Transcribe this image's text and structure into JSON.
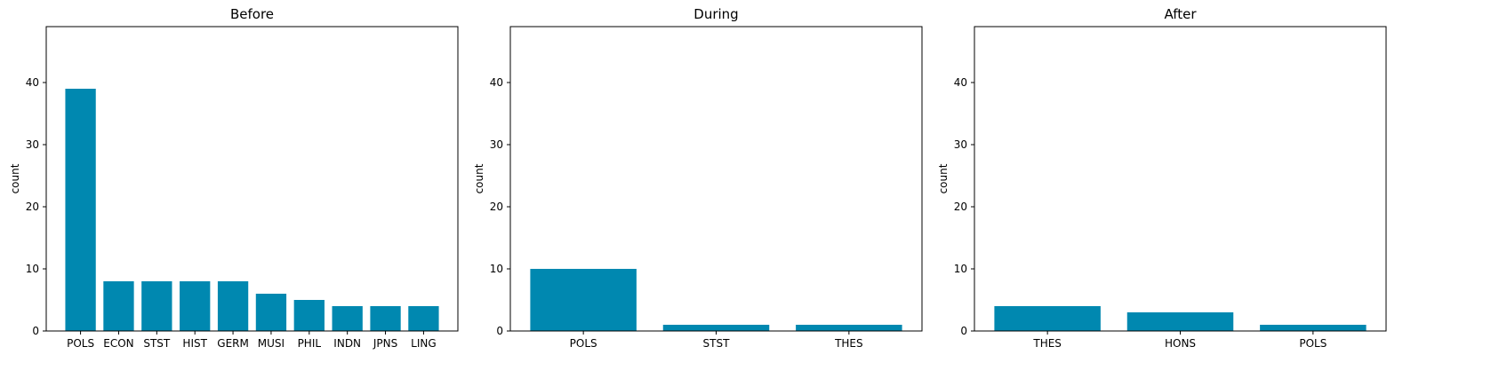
{
  "chart_data": [
    {
      "type": "bar",
      "title": "Before",
      "xlabel": "",
      "ylabel": "count",
      "ylim": [
        0,
        49
      ],
      "yticks": [
        0,
        10,
        20,
        30,
        40
      ],
      "categories": [
        "POLS",
        "ECON",
        "STST",
        "HIST",
        "GERM",
        "MUSI",
        "PHIL",
        "INDN",
        "JPNS",
        "LING"
      ],
      "values": [
        39,
        8,
        8,
        8,
        8,
        6,
        5,
        4,
        4,
        4
      ],
      "bar_color": "#0088b0",
      "grid": false
    },
    {
      "type": "bar",
      "title": "During",
      "xlabel": "",
      "ylabel": "count",
      "ylim": [
        0,
        49
      ],
      "yticks": [
        0,
        10,
        20,
        30,
        40
      ],
      "categories": [
        "POLS",
        "STST",
        "THES"
      ],
      "values": [
        10,
        1,
        1
      ],
      "bar_color": "#0088b0",
      "grid": false
    },
    {
      "type": "bar",
      "title": "After",
      "xlabel": "",
      "ylabel": "count",
      "ylim": [
        0,
        49
      ],
      "yticks": [
        0,
        10,
        20,
        30,
        40
      ],
      "categories": [
        "THES",
        "HONS",
        "POLS"
      ],
      "values": [
        4,
        3,
        1
      ],
      "bar_color": "#0088b0",
      "grid": false
    }
  ]
}
